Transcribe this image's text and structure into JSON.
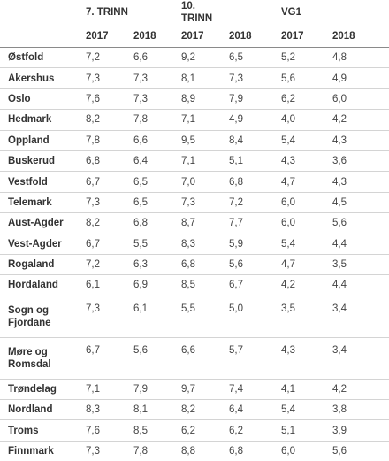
{
  "table": {
    "group_headers": [
      "",
      "7. TRINN",
      "",
      "10. TRINN",
      "",
      "VG1",
      ""
    ],
    "year_headers": [
      "",
      "2017",
      "2018",
      "2017",
      "2018",
      "2017",
      "2018"
    ],
    "rows": [
      {
        "region": "Østfold",
        "values": [
          "7,2",
          "6,6",
          "9,2",
          "6,5",
          "5,2",
          "4,8"
        ]
      },
      {
        "region": "Akershus",
        "values": [
          "7,3",
          "7,3",
          "8,1",
          "7,3",
          "5,6",
          "4,9"
        ]
      },
      {
        "region": "Oslo",
        "values": [
          "7,6",
          "7,3",
          "8,9",
          "7,9",
          "6,2",
          "6,0"
        ]
      },
      {
        "region": "Hedmark",
        "values": [
          "8,2",
          "7,8",
          "7,1",
          "4,9",
          "4,0",
          "4,2"
        ]
      },
      {
        "region": "Oppland",
        "values": [
          "7,8",
          "6,6",
          "9,5",
          "8,4",
          "5,4",
          "4,3"
        ]
      },
      {
        "region": "Buskerud",
        "values": [
          "6,8",
          "6,4",
          "7,1",
          "5,1",
          "4,3",
          "3,6"
        ]
      },
      {
        "region": "Vestfold",
        "values": [
          "6,7",
          "6,5",
          "7,0",
          "6,8",
          "4,7",
          "4,3"
        ]
      },
      {
        "region": "Telemark",
        "values": [
          "7,3",
          "6,5",
          "7,3",
          "7,2",
          "6,0",
          "4,5"
        ]
      },
      {
        "region": "Aust-Agder",
        "values": [
          "8,2",
          "6,8",
          "8,7",
          "7,7",
          "6,0",
          "5,6"
        ]
      },
      {
        "region": "Vest-Agder",
        "values": [
          "6,7",
          "5,5",
          "8,3",
          "5,9",
          "5,4",
          "4,4"
        ]
      },
      {
        "region": "Rogaland",
        "values": [
          "7,2",
          "6,3",
          "6,8",
          "5,6",
          "4,7",
          "3,5"
        ]
      },
      {
        "region": "Hordaland",
        "values": [
          "6,1",
          "6,9",
          "8,5",
          "6,7",
          "4,2",
          "4,4"
        ]
      },
      {
        "region": "Sogn og Fjordane",
        "values": [
          "7,3",
          "6,1",
          "5,5",
          "5,0",
          "3,5",
          "3,4"
        ]
      },
      {
        "region": "Møre og Romsdal",
        "values": [
          "6,7",
          "5,6",
          "6,6",
          "5,7",
          "4,3",
          "3,4"
        ]
      },
      {
        "region": "Trøndelag",
        "values": [
          "7,1",
          "7,9",
          "9,7",
          "7,4",
          "4,1",
          "4,2"
        ]
      },
      {
        "region": "Nordland",
        "values": [
          "8,3",
          "8,1",
          "8,2",
          "6,4",
          "5,4",
          "3,8"
        ]
      },
      {
        "region": "Troms",
        "values": [
          "7,6",
          "8,5",
          "6,2",
          "6,2",
          "5,1",
          "3,9"
        ]
      },
      {
        "region": "Finnmark",
        "values": [
          "7,3",
          "7,8",
          "8,8",
          "6,8",
          "6,0",
          "5,6"
        ]
      }
    ]
  }
}
